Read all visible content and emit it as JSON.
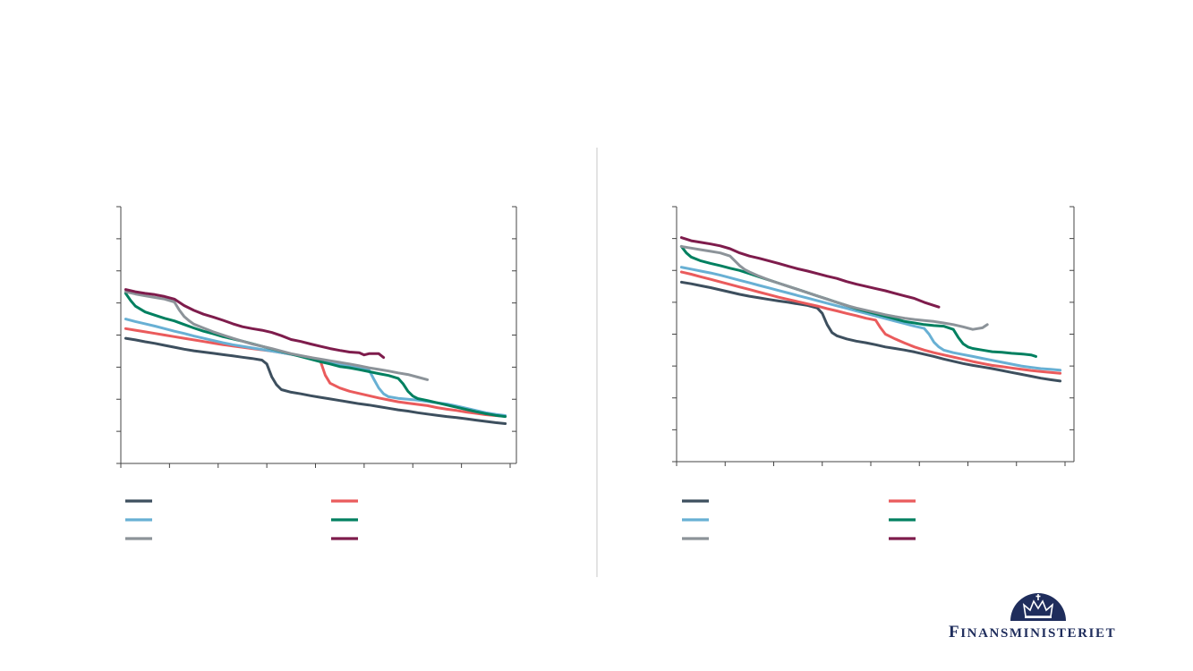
{
  "colors": {
    "dark_slate": "#3d4f5e",
    "coral": "#ea5b5c",
    "light_blue": "#68b0d4",
    "green": "#008060",
    "grey": "#8c9399",
    "plum": "#7e1c4c",
    "axis": "#444444",
    "divider": "#bfbfbf",
    "brand_navy": "#1f2d5c"
  },
  "chart_data": [
    {
      "type": "line",
      "title": "",
      "xlabel": "",
      "ylabel": "",
      "xlim": [
        0,
        80
      ],
      "ylim": [
        0,
        8
      ],
      "grid": false,
      "legend_position": "bottom",
      "series": [
        {
          "color_key": "dark_slate",
          "x": [
            1,
            3,
            5,
            7,
            9,
            11,
            13,
            15,
            17,
            19,
            21,
            23,
            25,
            27,
            29,
            30,
            31,
            32,
            33,
            35,
            37,
            39,
            41,
            43,
            45,
            47,
            49,
            51,
            53,
            55,
            57,
            59,
            61,
            63,
            65,
            67,
            69,
            71,
            73,
            75,
            77,
            79
          ],
          "y": [
            3.9,
            3.85,
            3.79,
            3.74,
            3.68,
            3.62,
            3.56,
            3.51,
            3.47,
            3.43,
            3.39,
            3.35,
            3.31,
            3.27,
            3.22,
            3.1,
            2.7,
            2.45,
            2.3,
            2.22,
            2.17,
            2.11,
            2.06,
            2.01,
            1.96,
            1.91,
            1.86,
            1.82,
            1.77,
            1.72,
            1.67,
            1.63,
            1.58,
            1.54,
            1.5,
            1.46,
            1.43,
            1.39,
            1.35,
            1.31,
            1.27,
            1.24
          ]
        },
        {
          "color_key": "coral",
          "x": [
            1,
            3,
            5,
            7,
            9,
            11,
            13,
            15,
            17,
            19,
            21,
            23,
            25,
            27,
            29,
            31,
            33,
            35,
            37,
            39,
            41,
            42,
            43,
            45,
            47,
            49,
            51,
            53,
            55,
            57,
            59,
            61,
            63,
            65,
            67,
            69,
            71,
            73,
            75,
            77,
            79
          ],
          "y": [
            4.2,
            4.15,
            4.1,
            4.05,
            4.0,
            3.95,
            3.9,
            3.85,
            3.8,
            3.75,
            3.7,
            3.66,
            3.62,
            3.58,
            3.54,
            3.5,
            3.45,
            3.4,
            3.35,
            3.3,
            3.2,
            2.75,
            2.5,
            2.35,
            2.25,
            2.18,
            2.11,
            2.04,
            1.98,
            1.92,
            1.88,
            1.84,
            1.8,
            1.74,
            1.69,
            1.65,
            1.6,
            1.56,
            1.52,
            1.49,
            1.47
          ]
        },
        {
          "color_key": "light_blue",
          "x": [
            1,
            3,
            5,
            7,
            9,
            11,
            13,
            15,
            17,
            19,
            21,
            23,
            25,
            27,
            29,
            31,
            33,
            35,
            37,
            39,
            41,
            43,
            45,
            47,
            49,
            51,
            52,
            53,
            54,
            55,
            57,
            59,
            61,
            63,
            65,
            67,
            69,
            71,
            73,
            75,
            77,
            79
          ],
          "y": [
            4.5,
            4.42,
            4.35,
            4.28,
            4.2,
            4.12,
            4.05,
            3.97,
            3.9,
            3.83,
            3.76,
            3.7,
            3.65,
            3.6,
            3.55,
            3.5,
            3.45,
            3.4,
            3.34,
            3.29,
            3.23,
            3.16,
            3.08,
            3.02,
            2.97,
            2.91,
            2.62,
            2.35,
            2.17,
            2.08,
            2.03,
            2.0,
            1.97,
            1.93,
            1.89,
            1.85,
            1.79,
            1.72,
            1.65,
            1.58,
            1.53,
            1.49
          ]
        },
        {
          "color_key": "green",
          "x": [
            1,
            2,
            3,
            5,
            7,
            9,
            11,
            13,
            15,
            17,
            19,
            21,
            23,
            25,
            27,
            29,
            31,
            33,
            35,
            37,
            39,
            41,
            43,
            45,
            47,
            49,
            51,
            53,
            55,
            57,
            58,
            59,
            60,
            61,
            63,
            65,
            67,
            69,
            71,
            73,
            75,
            77,
            79
          ],
          "y": [
            5.3,
            5.08,
            4.9,
            4.72,
            4.62,
            4.52,
            4.44,
            4.33,
            4.22,
            4.12,
            4.04,
            3.95,
            3.88,
            3.81,
            3.73,
            3.65,
            3.57,
            3.49,
            3.41,
            3.33,
            3.25,
            3.17,
            3.1,
            3.02,
            2.98,
            2.92,
            2.86,
            2.8,
            2.74,
            2.65,
            2.48,
            2.25,
            2.1,
            2.02,
            1.96,
            1.89,
            1.82,
            1.75,
            1.68,
            1.61,
            1.55,
            1.5,
            1.46
          ]
        },
        {
          "color_key": "grey",
          "x": [
            1,
            3,
            5,
            7,
            9,
            11,
            12,
            13,
            14,
            15,
            17,
            19,
            21,
            23,
            25,
            27,
            29,
            31,
            33,
            35,
            37,
            39,
            41,
            43,
            45,
            47,
            49,
            51,
            53,
            55,
            57,
            59,
            61,
            63
          ],
          "y": [
            5.35,
            5.28,
            5.22,
            5.17,
            5.12,
            5.03,
            4.78,
            4.58,
            4.45,
            4.34,
            4.22,
            4.1,
            4.0,
            3.9,
            3.81,
            3.72,
            3.65,
            3.58,
            3.5,
            3.42,
            3.36,
            3.3,
            3.25,
            3.2,
            3.15,
            3.1,
            3.04,
            2.98,
            2.93,
            2.88,
            2.82,
            2.77,
            2.69,
            2.61
          ]
        },
        {
          "color_key": "plum",
          "x": [
            1,
            3,
            5,
            7,
            9,
            11,
            13,
            15,
            17,
            19,
            21,
            23,
            25,
            27,
            29,
            31,
            33,
            35,
            37,
            39,
            41,
            43,
            45,
            47,
            49,
            50,
            51,
            53,
            54
          ],
          "y": [
            5.42,
            5.35,
            5.3,
            5.26,
            5.2,
            5.12,
            4.92,
            4.77,
            4.65,
            4.56,
            4.46,
            4.35,
            4.26,
            4.2,
            4.15,
            4.08,
            3.98,
            3.86,
            3.8,
            3.72,
            3.65,
            3.58,
            3.52,
            3.47,
            3.45,
            3.38,
            3.42,
            3.42,
            3.3
          ]
        }
      ]
    },
    {
      "type": "line",
      "title": "",
      "xlabel": "",
      "ylabel": "",
      "xlim": [
        0,
        80
      ],
      "ylim": [
        0,
        8
      ],
      "grid": false,
      "legend_position": "bottom",
      "series": [
        {
          "color_key": "dark_slate",
          "x": [
            1,
            3,
            5,
            7,
            9,
            11,
            13,
            15,
            17,
            19,
            21,
            23,
            25,
            27,
            29,
            30,
            31,
            32,
            33,
            35,
            37,
            39,
            41,
            43,
            45,
            47,
            49,
            51,
            53,
            55,
            57,
            59,
            61,
            63,
            65,
            67,
            69,
            71,
            73,
            75,
            77,
            79
          ],
          "y": [
            5.63,
            5.58,
            5.52,
            5.46,
            5.39,
            5.32,
            5.25,
            5.19,
            5.14,
            5.09,
            5.04,
            5.0,
            4.95,
            4.9,
            4.82,
            4.65,
            4.3,
            4.05,
            3.95,
            3.85,
            3.78,
            3.73,
            3.67,
            3.6,
            3.55,
            3.5,
            3.44,
            3.37,
            3.3,
            3.22,
            3.15,
            3.08,
            3.02,
            2.97,
            2.92,
            2.86,
            2.8,
            2.74,
            2.68,
            2.62,
            2.57,
            2.53
          ]
        },
        {
          "color_key": "coral",
          "x": [
            1,
            3,
            5,
            7,
            9,
            11,
            13,
            15,
            17,
            19,
            21,
            23,
            25,
            27,
            29,
            31,
            33,
            35,
            37,
            39,
            41,
            42,
            43,
            45,
            47,
            49,
            51,
            53,
            55,
            57,
            59,
            61,
            63,
            65,
            67,
            69,
            71,
            73,
            75,
            77,
            79
          ],
          "y": [
            5.95,
            5.88,
            5.8,
            5.72,
            5.64,
            5.56,
            5.48,
            5.4,
            5.32,
            5.24,
            5.16,
            5.09,
            5.02,
            4.95,
            4.88,
            4.8,
            4.73,
            4.65,
            4.58,
            4.5,
            4.44,
            4.2,
            4.0,
            3.85,
            3.72,
            3.6,
            3.5,
            3.42,
            3.35,
            3.28,
            3.21,
            3.14,
            3.08,
            3.02,
            2.98,
            2.94,
            2.9,
            2.86,
            2.83,
            2.8,
            2.77
          ]
        },
        {
          "color_key": "light_blue",
          "x": [
            1,
            3,
            5,
            7,
            9,
            11,
            13,
            15,
            17,
            19,
            21,
            23,
            25,
            27,
            29,
            31,
            33,
            35,
            37,
            39,
            41,
            43,
            45,
            47,
            49,
            51,
            52,
            53,
            54,
            55,
            57,
            59,
            61,
            63,
            65,
            67,
            69,
            71,
            73,
            75,
            77,
            79
          ],
          "y": [
            6.1,
            6.04,
            5.98,
            5.92,
            5.85,
            5.77,
            5.69,
            5.61,
            5.53,
            5.45,
            5.37,
            5.29,
            5.21,
            5.13,
            5.05,
            4.97,
            4.89,
            4.81,
            4.73,
            4.65,
            4.57,
            4.49,
            4.41,
            4.33,
            4.25,
            4.18,
            4.0,
            3.75,
            3.6,
            3.5,
            3.42,
            3.36,
            3.3,
            3.24,
            3.18,
            3.12,
            3.06,
            3.0,
            2.96,
            2.92,
            2.9,
            2.87
          ]
        },
        {
          "color_key": "green",
          "x": [
            1,
            2,
            3,
            5,
            7,
            9,
            11,
            13,
            15,
            17,
            19,
            21,
            23,
            25,
            27,
            29,
            31,
            33,
            35,
            37,
            39,
            41,
            43,
            45,
            47,
            49,
            51,
            53,
            55,
            57,
            58,
            59,
            60,
            61,
            63,
            65,
            67,
            69,
            71,
            73,
            74
          ],
          "y": [
            6.75,
            6.55,
            6.42,
            6.3,
            6.22,
            6.15,
            6.07,
            6.0,
            5.9,
            5.8,
            5.7,
            5.6,
            5.5,
            5.4,
            5.3,
            5.2,
            5.1,
            5.0,
            4.9,
            4.8,
            4.72,
            4.64,
            4.56,
            4.48,
            4.4,
            4.35,
            4.3,
            4.27,
            4.25,
            4.15,
            3.9,
            3.7,
            3.6,
            3.55,
            3.5,
            3.45,
            3.43,
            3.4,
            3.38,
            3.35,
            3.3
          ]
        },
        {
          "color_key": "grey",
          "x": [
            1,
            3,
            5,
            7,
            9,
            11,
            12,
            13,
            14,
            15,
            17,
            19,
            21,
            23,
            25,
            27,
            29,
            31,
            33,
            35,
            37,
            39,
            41,
            43,
            45,
            47,
            49,
            51,
            53,
            55,
            57,
            59,
            61,
            63,
            64
          ],
          "y": [
            6.75,
            6.7,
            6.65,
            6.6,
            6.55,
            6.45,
            6.3,
            6.15,
            6.03,
            5.95,
            5.82,
            5.7,
            5.6,
            5.5,
            5.4,
            5.3,
            5.2,
            5.1,
            5.0,
            4.9,
            4.82,
            4.75,
            4.68,
            4.61,
            4.55,
            4.5,
            4.46,
            4.43,
            4.4,
            4.35,
            4.3,
            4.23,
            4.15,
            4.2,
            4.3
          ]
        },
        {
          "color_key": "plum",
          "x": [
            1,
            2,
            3,
            5,
            7,
            9,
            11,
            13,
            15,
            17,
            19,
            21,
            23,
            25,
            27,
            29,
            31,
            33,
            35,
            37,
            39,
            41,
            43,
            45,
            47,
            49,
            51,
            53,
            54
          ],
          "y": [
            7.03,
            6.98,
            6.93,
            6.88,
            6.83,
            6.77,
            6.68,
            6.55,
            6.45,
            6.38,
            6.3,
            6.22,
            6.13,
            6.05,
            5.98,
            5.9,
            5.82,
            5.75,
            5.65,
            5.57,
            5.5,
            5.43,
            5.36,
            5.28,
            5.2,
            5.12,
            5.0,
            4.9,
            4.85
          ]
        }
      ]
    }
  ],
  "logo": {
    "word_initial": "F",
    "word_rest": "INANSMINISTERIET"
  }
}
